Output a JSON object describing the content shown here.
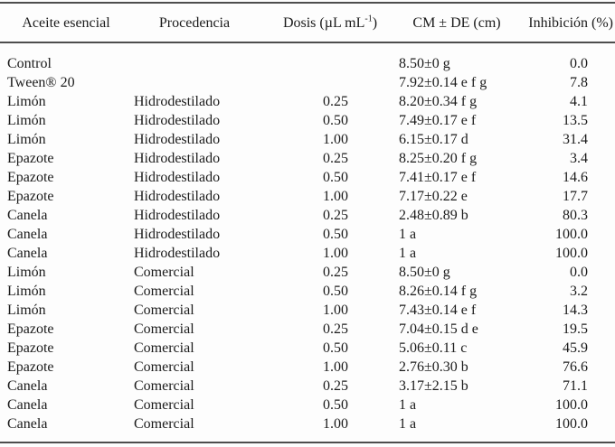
{
  "table": {
    "columns": [
      {
        "label": "Aceite esencial"
      },
      {
        "label": "Procedencia"
      },
      {
        "label_pre": "Dosis (µL mL",
        "sup": "-1",
        "label_post": ")"
      },
      {
        "label": "CM ± DE (cm)"
      },
      {
        "label": "Inhibición (%)"
      }
    ],
    "rows": [
      [
        "Control",
        "",
        "",
        "8.50±0 g",
        "0.0"
      ],
      [
        "Tween® 20",
        "",
        "",
        "7.92±0.14 e f g",
        "7.8"
      ],
      [
        "Limón",
        "Hidrodestilado",
        "0.25",
        "8.20±0.34 f g",
        "4.1"
      ],
      [
        "Limón",
        "Hidrodestilado",
        "0.50",
        "7.49±0.17 e f",
        "13.5"
      ],
      [
        "Limón",
        "Hidrodestilado",
        "1.00",
        "6.15±0.17 d",
        "31.4"
      ],
      [
        "Epazote",
        "Hidrodestilado",
        "0.25",
        "8.25±0.20 f g",
        "3.4"
      ],
      [
        "Epazote",
        "Hidrodestilado",
        "0.50",
        "7.41±0.17 e f",
        "14.6"
      ],
      [
        "Epazote",
        "Hidrodestilado",
        "1.00",
        "7.17±0.22 e",
        "17.7"
      ],
      [
        "Canela",
        "Hidrodestilado",
        "0.25",
        "2.48±0.89 b",
        "80.3"
      ],
      [
        "Canela",
        "Hidrodestilado",
        "0.50",
        "1 a",
        "100.0"
      ],
      [
        "Canela",
        "Hidrodestilado",
        "1.00",
        "1 a",
        "100.0"
      ],
      [
        "Limón",
        "Comercial",
        "0.25",
        "8.50±0 g",
        "0.0"
      ],
      [
        "Limón",
        "Comercial",
        "0.50",
        "8.26±0.14 f g",
        "3.2"
      ],
      [
        "Limón",
        "Comercial",
        "1.00",
        "7.43±0.14 e f",
        "14.3"
      ],
      [
        "Epazote",
        "Comercial",
        "0.25",
        "7.04±0.15 d e",
        "19.5"
      ],
      [
        "Epazote",
        "Comercial",
        "0.50",
        "5.06±0.11 c",
        "45.9"
      ],
      [
        "Epazote",
        "Comercial",
        "1.00",
        "2.76±0.30 b",
        "76.6"
      ],
      [
        "Canela",
        "Comercial",
        "0.25",
        "3.17±2.15 b",
        "71.1"
      ],
      [
        "Canela",
        "Comercial",
        "0.50",
        "1 a",
        "100.0"
      ],
      [
        "Canela",
        "Comercial",
        "1.00",
        "1 a",
        "100.0"
      ]
    ],
    "colors": {
      "rule": "#4d4d4d",
      "text": "#1b1b1b",
      "background": "#fdfdfd"
    }
  }
}
